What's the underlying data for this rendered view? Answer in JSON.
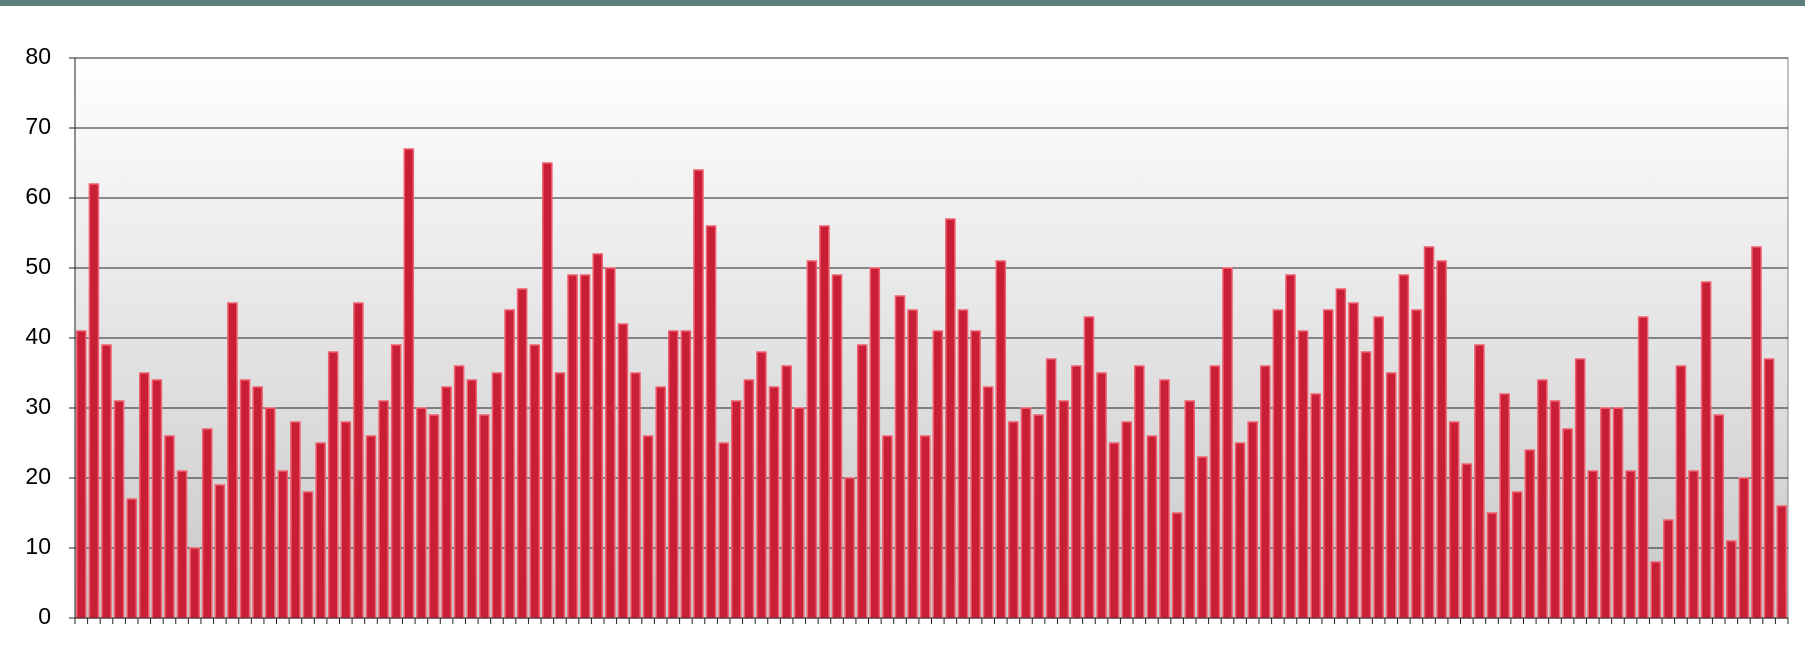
{
  "chart_data": {
    "type": "bar",
    "values": [
      41,
      62,
      39,
      31,
      17,
      35,
      34,
      26,
      21,
      10,
      27,
      19,
      45,
      34,
      33,
      30,
      21,
      28,
      18,
      25,
      38,
      28,
      45,
      26,
      31,
      39,
      67,
      30,
      29,
      33,
      36,
      34,
      29,
      35,
      44,
      47,
      39,
      65,
      35,
      49,
      49,
      52,
      50,
      42,
      35,
      26,
      33,
      41,
      41,
      64,
      56,
      25,
      31,
      34,
      38,
      33,
      36,
      30,
      51,
      56,
      49,
      20,
      39,
      50,
      26,
      46,
      44,
      26,
      41,
      57,
      44,
      41,
      33,
      51,
      28,
      30,
      29,
      37,
      31,
      36,
      43,
      35,
      25,
      28,
      36,
      26,
      34,
      15,
      31,
      23,
      36,
      50,
      25,
      28,
      36,
      44,
      49,
      41,
      32,
      44,
      47,
      45,
      38,
      43,
      35,
      49,
      44,
      53,
      51,
      28,
      22,
      39,
      15,
      32,
      18,
      24,
      34,
      31,
      27,
      37,
      21,
      30,
      30,
      21,
      43,
      8,
      14,
      36,
      21,
      48,
      29,
      11,
      20,
      53,
      37,
      16
    ],
    "color": "#c81e36",
    "ylim": [
      0,
      80
    ],
    "yticks": [
      0,
      10,
      20,
      30,
      40,
      50,
      60,
      70,
      80
    ],
    "grid": true
  }
}
